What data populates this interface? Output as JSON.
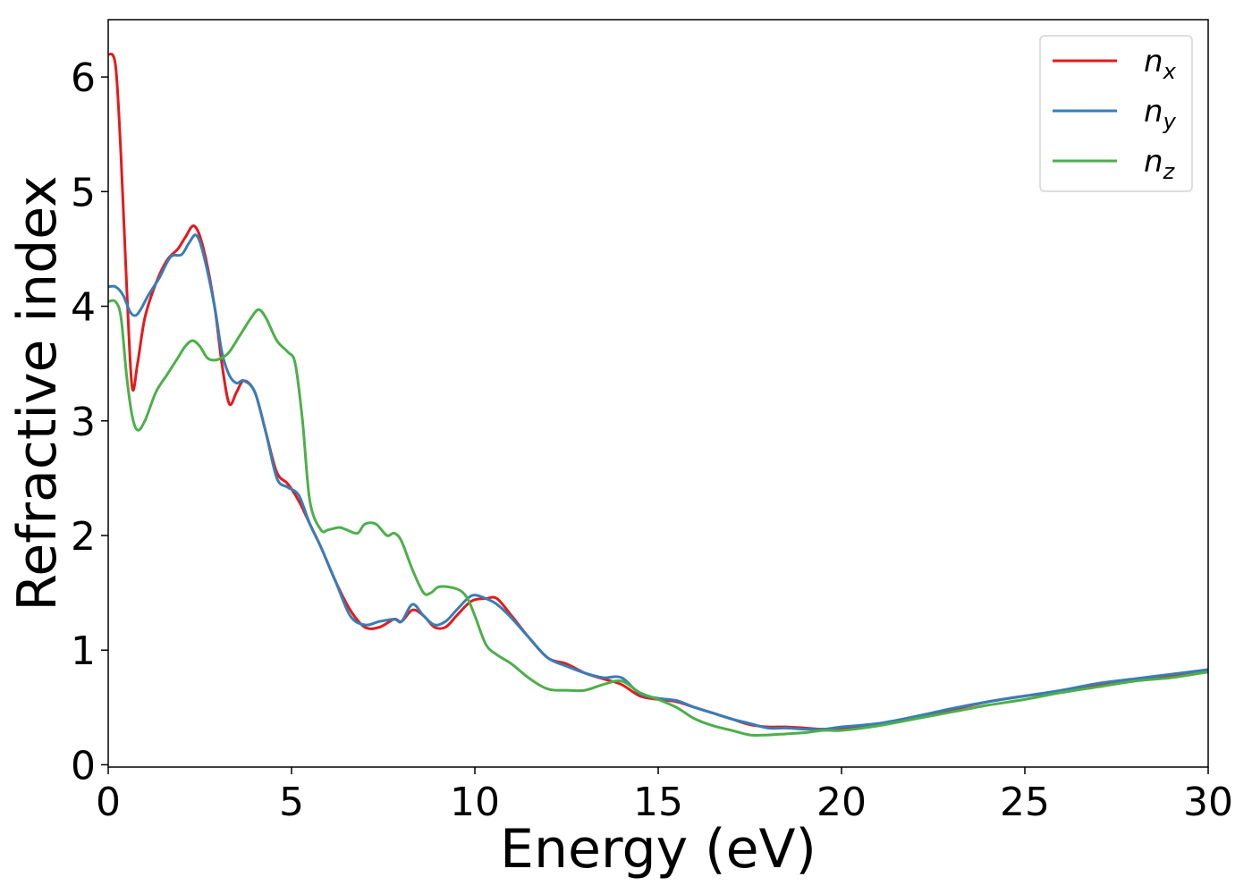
{
  "chart_data": {
    "type": "line",
    "xlabel": "Energy (eV)",
    "ylabel": "Refractive index",
    "xlim": [
      0,
      30
    ],
    "ylim": [
      -0.02,
      6.5
    ],
    "xticks": [
      0,
      5,
      10,
      15,
      20,
      25,
      30
    ],
    "yticks": [
      0,
      1,
      2,
      3,
      4,
      5,
      6
    ],
    "grid": false,
    "legend_position": "top-right",
    "series": [
      {
        "name": "n",
        "subscript": "x",
        "color": "#e41a1c",
        "x": [
          0,
          0.2,
          0.35,
          0.5,
          0.65,
          0.8,
          1.0,
          1.3,
          1.6,
          1.9,
          2.1,
          2.35,
          2.6,
          2.9,
          3.1,
          3.3,
          3.5,
          3.7,
          4.0,
          4.3,
          4.6,
          4.9,
          5.2,
          5.5,
          5.8,
          6.2,
          6.6,
          7.0,
          7.4,
          7.8,
          8.0,
          8.3,
          8.6,
          8.9,
          9.2,
          9.5,
          9.8,
          10.0,
          10.3,
          10.6,
          11.0,
          11.5,
          12.0,
          12.5,
          13.0,
          13.5,
          14.0,
          14.5,
          15.0,
          15.5,
          16.0,
          16.5,
          17.0,
          17.5,
          18.0,
          18.5,
          19.0,
          19.5,
          20.0,
          21.0,
          22.0,
          23.0,
          24.0,
          25.0,
          26.0,
          27.0,
          28.0,
          29.0,
          30.0
        ],
        "values": [
          6.2,
          6.1,
          5.3,
          4.2,
          3.3,
          3.5,
          3.9,
          4.2,
          4.4,
          4.5,
          4.6,
          4.7,
          4.5,
          4.0,
          3.5,
          3.15,
          3.25,
          3.35,
          3.25,
          2.9,
          2.55,
          2.45,
          2.3,
          2.1,
          1.9,
          1.6,
          1.35,
          1.2,
          1.2,
          1.27,
          1.25,
          1.35,
          1.3,
          1.2,
          1.2,
          1.3,
          1.4,
          1.44,
          1.45,
          1.45,
          1.3,
          1.1,
          0.93,
          0.88,
          0.8,
          0.75,
          0.7,
          0.6,
          0.57,
          0.55,
          0.5,
          0.45,
          0.4,
          0.35,
          0.33,
          0.33,
          0.32,
          0.31,
          0.32,
          0.35,
          0.42,
          0.48,
          0.55,
          0.6,
          0.64,
          0.7,
          0.74,
          0.78,
          0.83
        ]
      },
      {
        "name": "n",
        "subscript": "y",
        "color": "#377eb8",
        "x": [
          0,
          0.2,
          0.4,
          0.6,
          0.75,
          0.9,
          1.1,
          1.4,
          1.7,
          2.0,
          2.2,
          2.4,
          2.6,
          2.9,
          3.1,
          3.3,
          3.5,
          3.7,
          4.0,
          4.3,
          4.6,
          4.9,
          5.2,
          5.5,
          5.8,
          6.2,
          6.6,
          7.0,
          7.4,
          7.8,
          8.0,
          8.3,
          8.6,
          8.9,
          9.2,
          9.5,
          9.8,
          10.0,
          10.3,
          10.6,
          11.0,
          11.5,
          12.0,
          12.5,
          13.0,
          13.5,
          14.0,
          14.5,
          15.0,
          15.5,
          16.0,
          16.5,
          17.0,
          17.5,
          18.0,
          18.5,
          19.0,
          19.5,
          20.0,
          21.0,
          22.0,
          23.0,
          24.0,
          25.0,
          26.0,
          27.0,
          28.0,
          29.0,
          30.0
        ],
        "values": [
          4.17,
          4.17,
          4.1,
          3.95,
          3.92,
          3.98,
          4.1,
          4.25,
          4.43,
          4.45,
          4.55,
          4.62,
          4.45,
          4.0,
          3.6,
          3.4,
          3.33,
          3.35,
          3.25,
          2.9,
          2.5,
          2.42,
          2.35,
          2.1,
          1.9,
          1.6,
          1.3,
          1.22,
          1.25,
          1.27,
          1.25,
          1.4,
          1.3,
          1.22,
          1.25,
          1.35,
          1.45,
          1.48,
          1.45,
          1.4,
          1.28,
          1.1,
          0.93,
          0.86,
          0.8,
          0.76,
          0.76,
          0.62,
          0.58,
          0.56,
          0.5,
          0.45,
          0.4,
          0.36,
          0.32,
          0.32,
          0.31,
          0.31,
          0.33,
          0.36,
          0.42,
          0.49,
          0.55,
          0.6,
          0.65,
          0.71,
          0.75,
          0.79,
          0.83
        ]
      },
      {
        "name": "n",
        "subscript": "z",
        "color": "#4daf4a",
        "x": [
          0,
          0.2,
          0.35,
          0.5,
          0.65,
          0.8,
          1.0,
          1.3,
          1.6,
          1.9,
          2.1,
          2.3,
          2.5,
          2.7,
          2.9,
          3.1,
          3.3,
          3.6,
          3.9,
          4.1,
          4.3,
          4.6,
          4.9,
          5.1,
          5.3,
          5.5,
          5.8,
          6.0,
          6.3,
          6.5,
          6.8,
          7.0,
          7.3,
          7.6,
          7.8,
          8.0,
          8.3,
          8.6,
          8.8,
          9.0,
          9.3,
          9.6,
          9.8,
          10.0,
          10.3,
          10.6,
          11.0,
          11.5,
          12.0,
          12.5,
          13.0,
          13.5,
          14.0,
          14.5,
          15.0,
          15.5,
          16.0,
          16.5,
          17.0,
          17.5,
          18.0,
          18.5,
          19.0,
          19.5,
          20.0,
          21.0,
          22.0,
          23.0,
          24.0,
          25.0,
          26.0,
          27.0,
          28.0,
          29.0,
          30.0
        ],
        "values": [
          4.04,
          4.04,
          3.9,
          3.4,
          3.05,
          2.92,
          3.0,
          3.25,
          3.4,
          3.55,
          3.65,
          3.7,
          3.65,
          3.55,
          3.53,
          3.55,
          3.6,
          3.75,
          3.9,
          3.97,
          3.9,
          3.7,
          3.6,
          3.5,
          3.0,
          2.3,
          2.05,
          2.05,
          2.07,
          2.05,
          2.02,
          2.1,
          2.1,
          2.0,
          2.02,
          1.95,
          1.7,
          1.5,
          1.5,
          1.55,
          1.55,
          1.52,
          1.45,
          1.3,
          1.05,
          0.96,
          0.88,
          0.75,
          0.66,
          0.65,
          0.65,
          0.7,
          0.73,
          0.63,
          0.57,
          0.5,
          0.4,
          0.34,
          0.3,
          0.26,
          0.26,
          0.27,
          0.28,
          0.3,
          0.3,
          0.34,
          0.4,
          0.46,
          0.52,
          0.57,
          0.63,
          0.68,
          0.73,
          0.76,
          0.81
        ]
      }
    ]
  }
}
